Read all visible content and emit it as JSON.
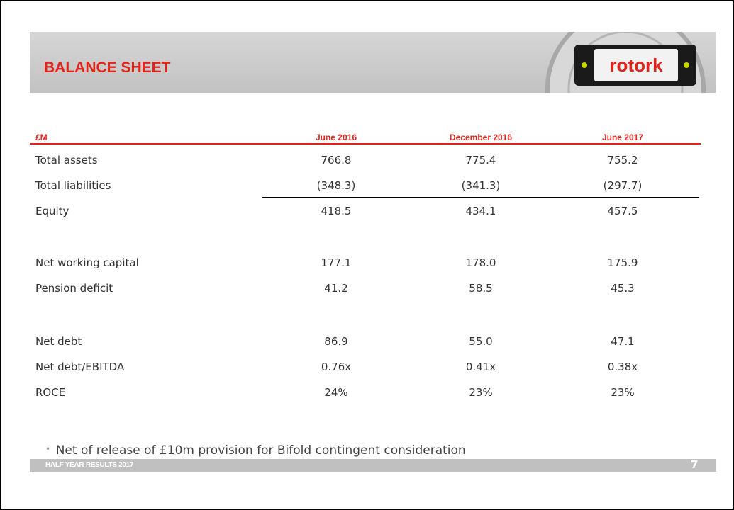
{
  "header": {
    "title": "BALANCE SHEET",
    "logo": "rotork"
  },
  "table": {
    "columns": [
      "£M",
      "June 2016",
      "December 2016",
      "June 2017"
    ],
    "rows": [
      [
        "Total assets",
        "766.8",
        "775.4",
        "755.2"
      ],
      [
        "Total liabilities",
        "(348.3)",
        "(341.3)",
        "(297.7)"
      ],
      [
        "Equity",
        "418.5",
        "434.1",
        "457.5"
      ],
      [
        "Net working capital",
        "177.1",
        "178.0",
        "175.9"
      ],
      [
        "Pension deficit",
        "41.2",
        "58.5",
        "45.3"
      ],
      [
        "Net debt",
        "86.9",
        "55.0",
        "47.1"
      ],
      [
        "Net debt/EBITDA",
        "0.76x",
        "0.41x",
        "0.38x"
      ],
      [
        "ROCE",
        "24%",
        "23%",
        "23%"
      ]
    ]
  },
  "bullets": [
    "Net of release of £10m provision for Bifold contingent consideration"
  ],
  "footer": {
    "text": "HALF YEAR RESULTS 2017",
    "page": "7"
  }
}
